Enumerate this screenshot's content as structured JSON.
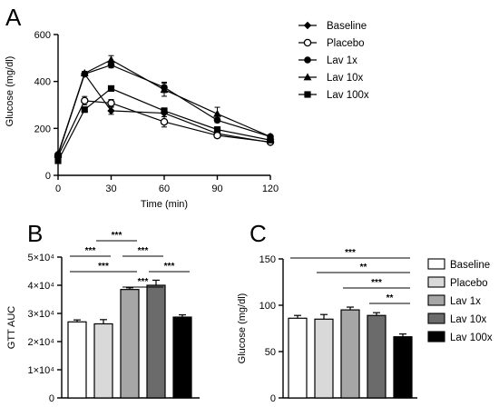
{
  "chart_data": [
    {
      "panel": "A",
      "type": "line",
      "xlabel": "Time (min)",
      "ylabel": "Glucose (mg/dl)",
      "x": [
        0,
        15,
        30,
        60,
        90,
        120
      ],
      "xticks": [
        0,
        30,
        60,
        90,
        120
      ],
      "xlim": [
        0,
        120
      ],
      "yticks": [
        0,
        200,
        400,
        600
      ],
      "ylim": [
        0,
        600
      ],
      "grid": false,
      "legend_position": "right",
      "series": [
        {
          "name": "Baseline",
          "marker": "diamond",
          "values": [
            92,
            432,
            275,
            265,
            178,
            140
          ],
          "errors": [
            4,
            8,
            15,
            15,
            8,
            6
          ]
        },
        {
          "name": "Placebo",
          "marker": "circle-open",
          "values": [
            82,
            318,
            308,
            228,
            170,
            142
          ],
          "errors": [
            4,
            18,
            15,
            22,
            8,
            6
          ]
        },
        {
          "name": "Lav 1x",
          "marker": "circle",
          "values": [
            88,
            432,
            470,
            375,
            235,
            165
          ],
          "errors": [
            4,
            8,
            12,
            22,
            10,
            6
          ]
        },
        {
          "name": "Lav 10x",
          "marker": "triangle",
          "values": [
            88,
            435,
            492,
            365,
            262,
            165
          ],
          "errors": [
            4,
            8,
            18,
            28,
            28,
            6
          ]
        },
        {
          "name": "Lav 100x",
          "marker": "square",
          "values": [
            62,
            280,
            370,
            275,
            195,
            150
          ],
          "errors": [
            4,
            8,
            8,
            12,
            10,
            6
          ]
        }
      ]
    },
    {
      "panel": "B",
      "type": "bar",
      "xlabel": "",
      "ylabel": "GTT AUC",
      "categories": [
        "Baseline",
        "Placebo",
        "Lav 1x",
        "Lav 10x",
        "Lav 100x"
      ],
      "values": [
        27000,
        26300,
        38500,
        40000,
        28700
      ],
      "errors": [
        700,
        1500,
        600,
        1800,
        800
      ],
      "colors": [
        "#ffffff",
        "#d9d9d9",
        "#a6a6a6",
        "#6b6b6b",
        "#000000"
      ],
      "ylim": [
        0,
        50000
      ],
      "ytick_values": [
        0,
        10000,
        20000,
        30000,
        40000,
        50000
      ],
      "yticks": [
        "0",
        "1×10⁴",
        "2×10⁴",
        "3×10⁴",
        "4×10⁴",
        "5×10⁴"
      ],
      "significance": [
        {
          "from": 1,
          "to": 2,
          "label": "***"
        },
        {
          "from": 0,
          "to": 1,
          "label": "***"
        },
        {
          "from": 2,
          "to": 3,
          "label": "***"
        },
        {
          "from": 0,
          "to": 2,
          "label": "***"
        },
        {
          "from": 3,
          "to": 4,
          "label": "***"
        },
        {
          "from": 2,
          "to": 3,
          "label": "***"
        }
      ]
    },
    {
      "panel": "C",
      "type": "bar",
      "xlabel": "",
      "ylabel": "Glucose (mg/dl)",
      "categories": [
        "Baseline",
        "Placebo",
        "Lav 1x",
        "Lav 10x",
        "Lav 100x"
      ],
      "values": [
        86,
        85,
        95,
        89,
        66
      ],
      "errors": [
        3,
        5,
        3,
        3,
        3
      ],
      "colors": [
        "#ffffff",
        "#d9d9d9",
        "#a6a6a6",
        "#6b6b6b",
        "#000000"
      ],
      "ylim": [
        0,
        150
      ],
      "yticks": [
        0,
        50,
        100,
        150
      ],
      "legend_position": "right",
      "significance": [
        {
          "from": 0,
          "to": 4,
          "label": "***"
        },
        {
          "from": 1,
          "to": 4,
          "label": "**"
        },
        {
          "from": 2,
          "to": 4,
          "label": "***"
        },
        {
          "from": 3,
          "to": 4,
          "label": "**"
        }
      ]
    }
  ]
}
